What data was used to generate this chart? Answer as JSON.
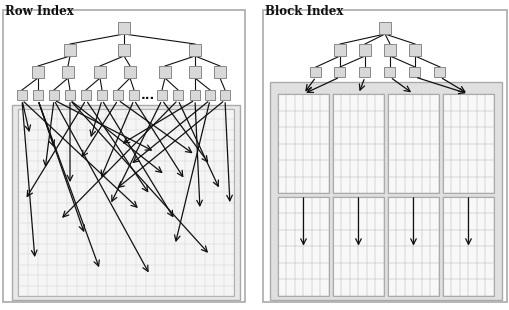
{
  "title_left": "Row Index",
  "title_right": "Block Index",
  "bg_color": "#ffffff",
  "box_color": "#d8d8d8",
  "box_edge": "#888888",
  "grid_color": "#bbbbbb",
  "panel_bg": "#e8e8e8",
  "panel_edge": "#aaaaaa",
  "arrow_color": "#111111",
  "font_color": "#111111"
}
